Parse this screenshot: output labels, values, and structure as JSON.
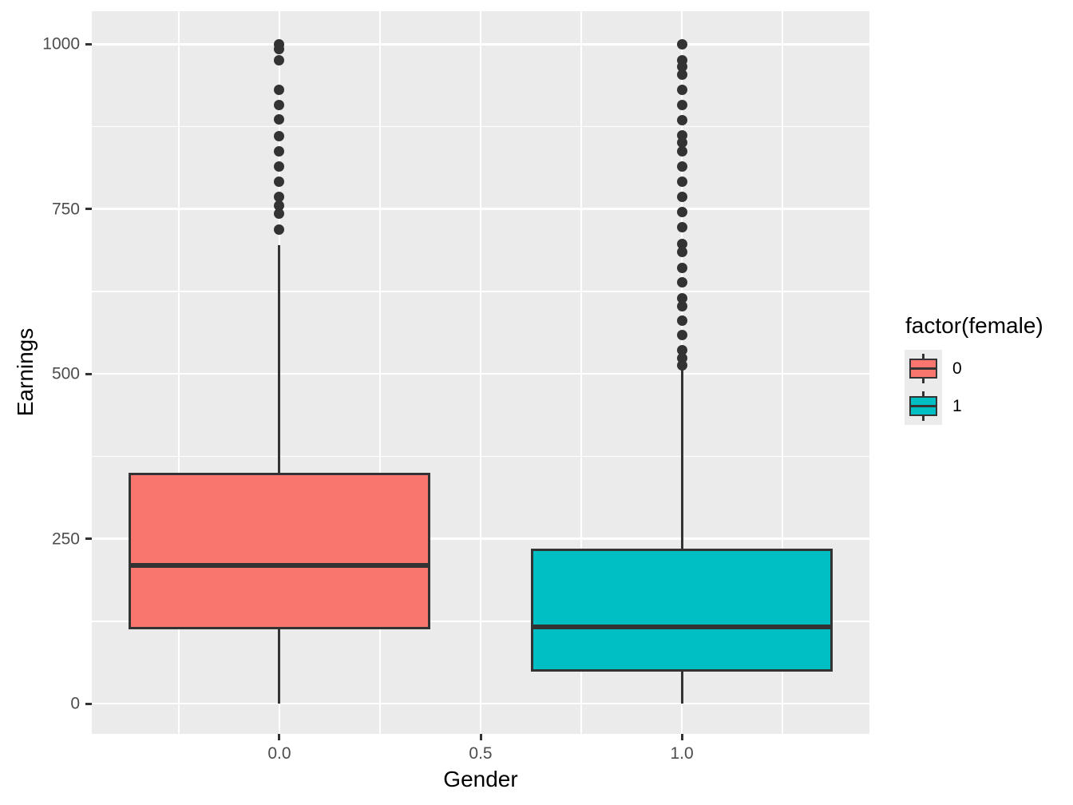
{
  "figure": {
    "background": "#FFFFFF",
    "panel_bg": "#EBEBEB",
    "grid_color": "#FFFFFF",
    "axis_text_color": "#4D4D4D",
    "element_color": "#333333"
  },
  "chart_data": {
    "type": "boxplot",
    "xlabel": "Gender",
    "ylabel": "Earnings",
    "x_tick_labels": [
      "0.0",
      "0.5",
      "1.0"
    ],
    "x_tick_values": [
      0,
      0.5,
      1
    ],
    "y_tick_labels": [
      "0",
      "250",
      "500",
      "750",
      "1000"
    ],
    "y_tick_values": [
      0,
      250,
      500,
      750,
      1000
    ],
    "xlim": [
      -0.466,
      1.466
    ],
    "ylim": [
      -46,
      1050
    ],
    "grid": "on",
    "box_width": 0.75,
    "legend": {
      "title": "factor(female)",
      "position": "right",
      "entries": [
        {
          "label": "0",
          "color": "#F8766D"
        },
        {
          "label": "1",
          "color": "#00BFC4"
        }
      ]
    },
    "series": [
      {
        "name": "0",
        "x": 0,
        "fill": "#F8766D",
        "q1": 113,
        "median": 210,
        "q3": 350,
        "whisker_low": 0,
        "whisker_high": 695,
        "outliers": [
          1000,
          992,
          976,
          931,
          908,
          886,
          861,
          837,
          814,
          791,
          768,
          755,
          743,
          719
        ]
      },
      {
        "name": "1",
        "x": 1,
        "fill": "#00BFC4",
        "q1": 48,
        "median": 116,
        "q3": 235,
        "whisker_low": 0,
        "whisker_high": 506,
        "outliers": [
          1000,
          976,
          966,
          954,
          931,
          908,
          885,
          862,
          851,
          837,
          815,
          791,
          768,
          746,
          722,
          697,
          685,
          661,
          639,
          615,
          603,
          581,
          559,
          536,
          524,
          513
        ]
      }
    ]
  }
}
